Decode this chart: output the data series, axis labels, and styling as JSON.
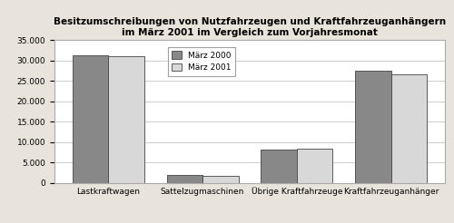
{
  "title_line1": "Besitzumschreibungen von Nutzfahrzeugen und Kraftfahrzeuganhängern",
  "title_line2": "im März 2001 im Vergleich zum Vorjahresmonat",
  "categories": [
    "Lastkraftwagen",
    "Sattelzugmaschinen",
    "Übrige Kraftfahrzeuge",
    "Kraftfahrzeuganhänger"
  ],
  "series": [
    {
      "label": "März 2000",
      "color": "#888888",
      "values": [
        31300,
        2000,
        8200,
        27500
      ]
    },
    {
      "label": "März 2001",
      "color": "#d8d8d8",
      "values": [
        31000,
        1800,
        8300,
        26700
      ]
    }
  ],
  "ylim": [
    0,
    35000
  ],
  "yticks": [
    0,
    5000,
    10000,
    15000,
    20000,
    25000,
    30000,
    35000
  ],
  "bar_width": 0.38,
  "background_color": "#e8e4dc",
  "plot_bg_color": "#ffffff",
  "title_fontsize": 7.5,
  "tick_fontsize": 6.5,
  "legend_fontsize": 6.5
}
